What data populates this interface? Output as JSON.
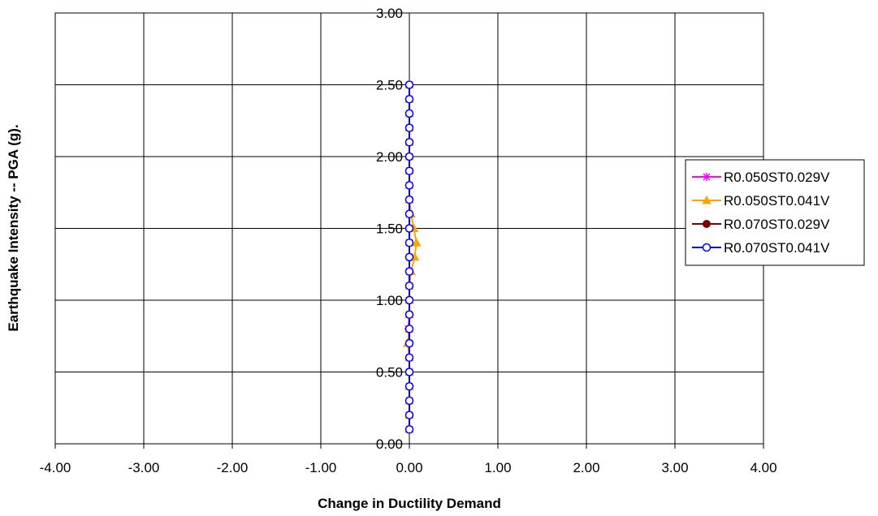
{
  "chart_data": {
    "type": "line",
    "title": "",
    "xlabel": "Change in Ductility Demand",
    "ylabel": "Earthquake Intensity -- PGA (g).",
    "xlim": [
      -4,
      4
    ],
    "ylim": [
      0,
      3
    ],
    "x_ticks": [
      "-4.00",
      "-3.00",
      "-2.00",
      "-1.00",
      "0.00",
      "1.00",
      "2.00",
      "3.00",
      "4.00"
    ],
    "y_ticks": [
      "0.00",
      "0.50",
      "1.00",
      "1.50",
      "2.00",
      "2.50",
      "3.00"
    ],
    "grid": true,
    "legend_position": "right",
    "series": [
      {
        "name": "R0.050ST0.029V",
        "color": "#ff00ff",
        "marker": "star",
        "x": [
          0,
          0,
          0,
          0,
          0,
          0,
          0,
          -0.01,
          0,
          0,
          0,
          0,
          0,
          0,
          0,
          0,
          0,
          0,
          0,
          0,
          0,
          0,
          0,
          0,
          0
        ],
        "y": [
          0.1,
          0.2,
          0.3,
          0.4,
          0.5,
          0.6,
          0.7,
          0.8,
          0.9,
          1.0,
          1.1,
          1.2,
          1.3,
          1.4,
          1.5,
          1.6,
          1.7,
          1.8,
          1.9,
          2.0,
          2.1,
          2.2,
          2.3,
          2.4,
          2.5
        ]
      },
      {
        "name": "R0.050ST0.041V",
        "color": "#ffa500",
        "marker": "triangle",
        "x": [
          0,
          0,
          0,
          0,
          0,
          0,
          -0.02,
          0,
          0,
          0,
          0,
          0.02,
          0.06,
          0.08,
          0.05,
          0.02,
          0,
          0,
          0,
          0,
          0,
          0,
          0,
          0,
          0
        ],
        "y": [
          0.1,
          0.2,
          0.3,
          0.4,
          0.5,
          0.6,
          0.7,
          0.8,
          0.9,
          1.0,
          1.1,
          1.2,
          1.3,
          1.4,
          1.5,
          1.6,
          1.7,
          1.8,
          1.9,
          2.0,
          2.1,
          2.2,
          2.3,
          2.4,
          2.5
        ]
      },
      {
        "name": "R0.070ST0.029V",
        "color": "#800000",
        "marker": "circle-filled",
        "x": [
          0,
          0,
          0,
          0,
          0,
          0,
          0,
          0,
          0,
          0,
          0,
          0,
          0,
          0,
          0,
          0,
          0,
          0,
          0,
          0,
          0,
          0,
          0,
          0,
          0
        ],
        "y": [
          0.1,
          0.2,
          0.3,
          0.4,
          0.5,
          0.6,
          0.7,
          0.8,
          0.9,
          1.0,
          1.1,
          1.2,
          1.3,
          1.4,
          1.5,
          1.6,
          1.7,
          1.8,
          1.9,
          2.0,
          2.1,
          2.2,
          2.3,
          2.4,
          2.5
        ]
      },
      {
        "name": "R0.070ST0.041V",
        "color": "#0000ff",
        "marker": "circle-open",
        "x": [
          0,
          0,
          0,
          0,
          0,
          0,
          0,
          0,
          0,
          0,
          0,
          0,
          0,
          0,
          0,
          0,
          0,
          0,
          0,
          0,
          0,
          0,
          0,
          0,
          0
        ],
        "y": [
          0.1,
          0.2,
          0.3,
          0.4,
          0.5,
          0.6,
          0.7,
          0.8,
          0.9,
          1.0,
          1.1,
          1.2,
          1.3,
          1.4,
          1.5,
          1.6,
          1.7,
          1.8,
          1.9,
          2.0,
          2.1,
          2.2,
          2.3,
          2.4,
          2.5
        ]
      }
    ]
  }
}
